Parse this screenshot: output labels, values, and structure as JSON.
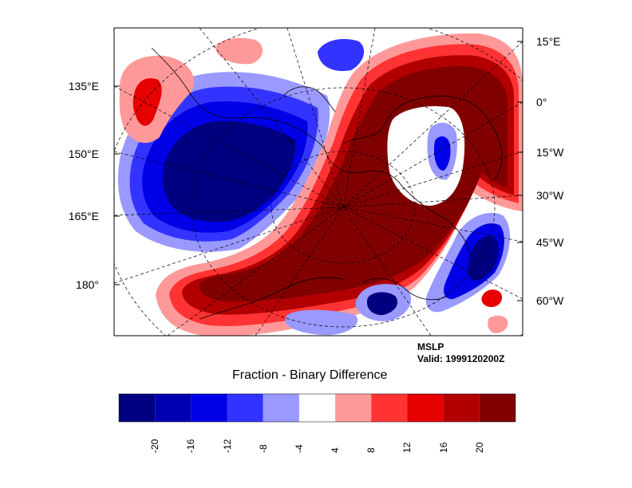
{
  "figure": {
    "field": "MSLP",
    "valid": "Valid: 1999120200Z",
    "colorbar_title": "Fraction - Binary Difference"
  },
  "axes": {
    "left_labels": [
      "135°E",
      "150°E",
      "165°E",
      "180°"
    ],
    "right_labels": [
      "15°E",
      "0°",
      "15°W",
      "30°W",
      "45°W",
      "60°W"
    ]
  },
  "colorbar": {
    "colors": [
      "#000080",
      "#0000b2",
      "#0000e6",
      "#3333ff",
      "#9999ff",
      "#ffffff",
      "#ff9999",
      "#ff3333",
      "#e60000",
      "#b20000",
      "#800000"
    ],
    "tick_labels": [
      "-20",
      "-16",
      "-12",
      "-8",
      "-4",
      "4",
      "8",
      "12",
      "16",
      "20"
    ]
  },
  "palette": {
    "dark_blue": "#000080",
    "blue": "#0000e6",
    "light_blue": "#9999ff",
    "light_red": "#ff9999",
    "red": "#e60000",
    "dark_red": "#800000"
  }
}
